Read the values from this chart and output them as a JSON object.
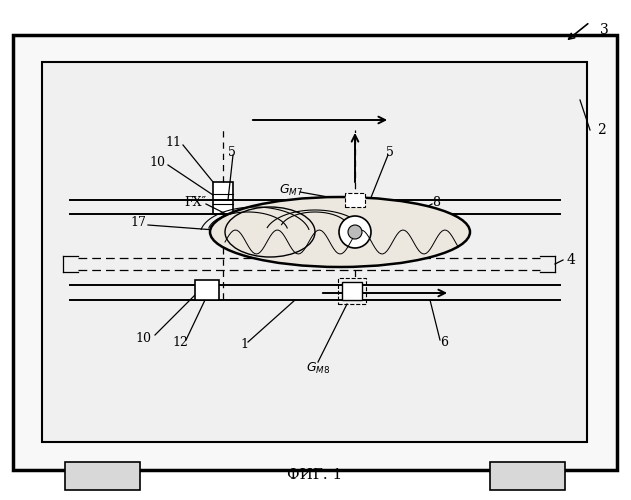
{
  "title": "ФИГ. 1",
  "bg_color": "#ffffff",
  "figsize": [
    6.31,
    5.0
  ],
  "dpi": 100
}
